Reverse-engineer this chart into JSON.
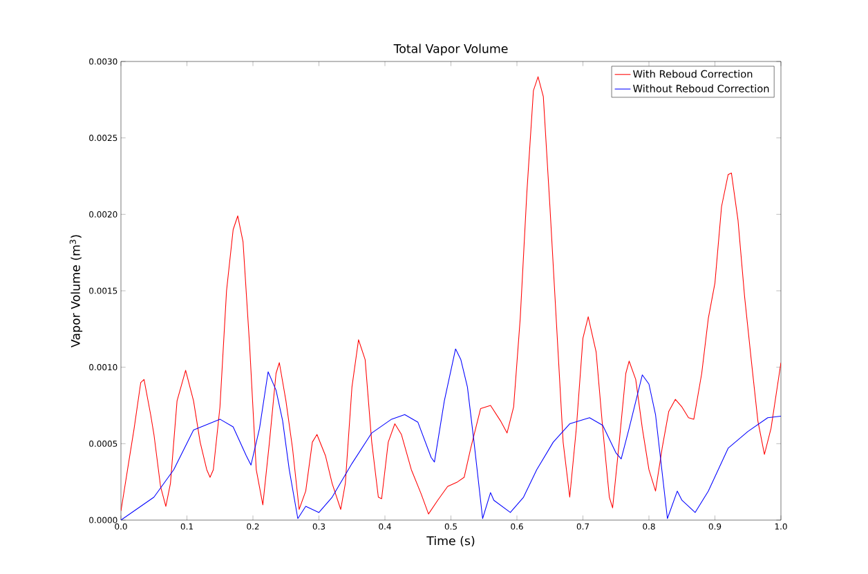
{
  "chart_data": {
    "type": "line",
    "title": "Total Vapor Volume",
    "xlabel": "Time (s)",
    "ylabel": "Vapor Volume (m$^{3}$)",
    "xlim": [
      0.0,
      1.0
    ],
    "ylim": [
      0.0,
      0.003
    ],
    "xticks": [
      {
        "value": 0.0,
        "label": "0.0"
      },
      0.1,
      0.2,
      0.3,
      0.4,
      0.5,
      0.6,
      0.7,
      0.8,
      0.9,
      {
        "value": 1.0,
        "label": "1.0"
      }
    ],
    "yticks": [
      {
        "value": 0.0,
        "label": "0.0000"
      },
      {
        "value": 0.0005,
        "label": "0.0005"
      },
      {
        "value": 0.001,
        "label": "0.0010"
      },
      {
        "value": 0.0015,
        "label": "0.0015"
      },
      {
        "value": 0.002,
        "label": "0.0020"
      },
      {
        "value": 0.0025,
        "label": "0.0025"
      },
      {
        "value": 0.003,
        "label": "0.0030"
      }
    ],
    "legend": "top right",
    "grid": false,
    "marker": "none",
    "line_style": "solid",
    "series": [
      {
        "name": "With Reboud Correction",
        "color": "#ff0000",
        "x": [
          0.0,
          0.01,
          0.02,
          0.03,
          0.035,
          0.045,
          0.05,
          0.06,
          0.068,
          0.075,
          0.085,
          0.098,
          0.11,
          0.12,
          0.13,
          0.135,
          0.14,
          0.15,
          0.16,
          0.17,
          0.177,
          0.185,
          0.195,
          0.205,
          0.215,
          0.225,
          0.235,
          0.24,
          0.25,
          0.26,
          0.27,
          0.28,
          0.29,
          0.297,
          0.31,
          0.32,
          0.333,
          0.34,
          0.35,
          0.36,
          0.37,
          0.38,
          0.39,
          0.395,
          0.405,
          0.415,
          0.425,
          0.44,
          0.455,
          0.466,
          0.48,
          0.495,
          0.51,
          0.52,
          0.53,
          0.545,
          0.56,
          0.575,
          0.585,
          0.595,
          0.605,
          0.615,
          0.625,
          0.632,
          0.64,
          0.65,
          0.66,
          0.67,
          0.68,
          0.69,
          0.7,
          0.708,
          0.72,
          0.73,
          0.74,
          0.745,
          0.755,
          0.765,
          0.77,
          0.78,
          0.79,
          0.8,
          0.81,
          0.82,
          0.83,
          0.84,
          0.85,
          0.86,
          0.868,
          0.88,
          0.89,
          0.9,
          0.91,
          0.92,
          0.925,
          0.935,
          0.945,
          0.955,
          0.965,
          0.975,
          0.985,
          1.0
        ],
        "values": [
          6e-05,
          0.00033,
          0.0006,
          0.0009,
          0.00092,
          0.00069,
          0.00056,
          0.00022,
          9e-05,
          0.00024,
          0.00078,
          0.00098,
          0.00078,
          0.00051,
          0.00033,
          0.00028,
          0.00033,
          0.00074,
          0.0015,
          0.0019,
          0.00199,
          0.00182,
          0.00114,
          0.00033,
          0.0001,
          0.00051,
          0.00096,
          0.00103,
          0.00078,
          0.00047,
          7e-05,
          0.00019,
          0.00051,
          0.00056,
          0.00042,
          0.00024,
          7e-05,
          0.00024,
          0.00087,
          0.00118,
          0.00105,
          0.00051,
          0.00015,
          0.00014,
          0.00051,
          0.00063,
          0.00056,
          0.00033,
          0.00017,
          4e-05,
          0.00013,
          0.00022,
          0.00025,
          0.00028,
          0.00047,
          0.00073,
          0.00075,
          0.00065,
          0.00057,
          0.00074,
          0.00132,
          0.00214,
          0.00281,
          0.0029,
          0.00277,
          0.00205,
          0.00128,
          0.00051,
          0.00015,
          0.0006,
          0.00119,
          0.00133,
          0.0011,
          0.0006,
          0.00015,
          8e-05,
          0.00051,
          0.00096,
          0.00104,
          0.00092,
          0.0006,
          0.00033,
          0.00019,
          0.00047,
          0.00071,
          0.00079,
          0.00074,
          0.00067,
          0.00066,
          0.00096,
          0.00132,
          0.00155,
          0.00205,
          0.00226,
          0.00227,
          0.00196,
          0.00146,
          0.00105,
          0.00065,
          0.00043,
          0.0006,
          0.00103
        ]
      },
      {
        "name": "Without Reboud Correction",
        "color": "#0000ff",
        "x": [
          0.0,
          0.05,
          0.08,
          0.11,
          0.15,
          0.17,
          0.19,
          0.197,
          0.21,
          0.223,
          0.235,
          0.245,
          0.255,
          0.268,
          0.28,
          0.285,
          0.3,
          0.32,
          0.35,
          0.38,
          0.41,
          0.43,
          0.45,
          0.47,
          0.475,
          0.49,
          0.507,
          0.515,
          0.525,
          0.535,
          0.548,
          0.56,
          0.565,
          0.59,
          0.61,
          0.63,
          0.655,
          0.68,
          0.71,
          0.73,
          0.75,
          0.758,
          0.77,
          0.79,
          0.8,
          0.81,
          0.828,
          0.843,
          0.85,
          0.87,
          0.89,
          0.92,
          0.95,
          0.98,
          1.0
        ],
        "values": [
          0.0,
          0.00015,
          0.00033,
          0.00059,
          0.00066,
          0.00061,
          0.00042,
          0.00036,
          0.0006,
          0.00097,
          0.00085,
          0.00065,
          0.00033,
          1e-05,
          9e-05,
          8e-05,
          5e-05,
          0.00015,
          0.00037,
          0.00057,
          0.00066,
          0.00069,
          0.00064,
          0.00041,
          0.00038,
          0.00078,
          0.00112,
          0.00105,
          0.00087,
          0.00051,
          1e-05,
          0.00018,
          0.00013,
          5e-05,
          0.00015,
          0.00033,
          0.00051,
          0.00063,
          0.00067,
          0.00062,
          0.00044,
          0.0004,
          0.0006,
          0.00095,
          0.00089,
          0.00069,
          1e-05,
          0.00019,
          0.00013,
          5e-05,
          0.00019,
          0.00047,
          0.00058,
          0.00067,
          0.00068
        ]
      }
    ]
  }
}
